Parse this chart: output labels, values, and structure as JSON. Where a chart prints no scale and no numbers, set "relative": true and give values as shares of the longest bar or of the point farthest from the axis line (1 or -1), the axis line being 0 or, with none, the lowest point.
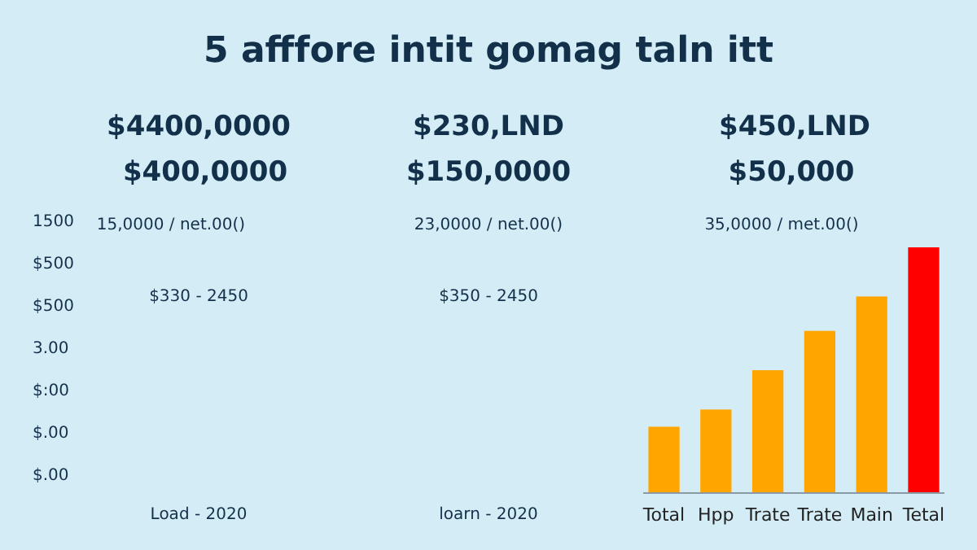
{
  "chart_data": {
    "type": "bar",
    "relative": true,
    "title": "5 afffore intit gomag taln itt",
    "categories": [
      "Total",
      "Hpp",
      "Trate",
      "Trate",
      "Main",
      "Tetal"
    ],
    "values": [
      0.27,
      0.34,
      0.5,
      0.66,
      0.8,
      1
    ],
    "colors": [
      "#ffa500",
      "#ffa500",
      "#ffa500",
      "#ffa500",
      "#ffa500",
      "#ff0000"
    ],
    "annotations": [
      "$4400,0000",
      "$400,0000",
      "$230,LND",
      "$150,0000",
      "$450,LND",
      "$50,000",
      "15,0000 / net.00()",
      "23,0000 / net.00()",
      "35,0000 / met.00()",
      "$330 - 2450",
      "$350 - 2450",
      "Load - 2020",
      "loarn - 2020",
      "1500",
      "$500",
      "$500",
      "3.00",
      "$:00",
      "$.00",
      "$.00"
    ]
  }
}
